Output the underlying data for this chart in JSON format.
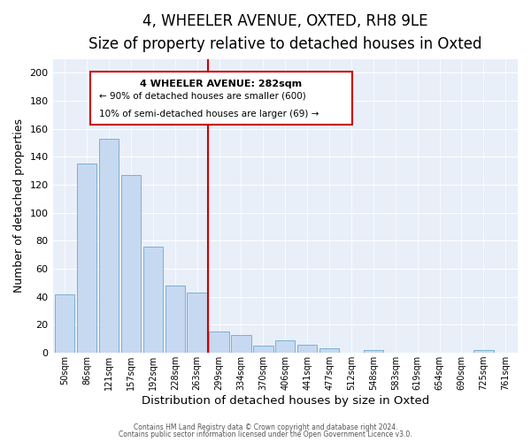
{
  "title1": "4, WHEELER AVENUE, OXTED, RH8 9LE",
  "title2": "Size of property relative to detached houses in Oxted",
  "xlabel": "Distribution of detached houses by size in Oxted",
  "ylabel": "Number of detached properties",
  "bar_labels": [
    "50sqm",
    "86sqm",
    "121sqm",
    "157sqm",
    "192sqm",
    "228sqm",
    "263sqm",
    "299sqm",
    "334sqm",
    "370sqm",
    "406sqm",
    "441sqm",
    "477sqm",
    "512sqm",
    "548sqm",
    "583sqm",
    "619sqm",
    "654sqm",
    "690sqm",
    "725sqm",
    "761sqm"
  ],
  "bar_heights": [
    42,
    135,
    153,
    127,
    76,
    48,
    43,
    15,
    13,
    5,
    9,
    6,
    3,
    0,
    2,
    0,
    0,
    0,
    0,
    2,
    0
  ],
  "bar_color": "#c6d9f1",
  "bar_edge_color": "#7ab0d4",
  "vline_x": 7.0,
  "vline_color": "#cc0000",
  "annotation_title": "4 WHEELER AVENUE: 282sqm",
  "annotation_line1": "← 90% of detached houses are smaller (600)",
  "annotation_line2": "10% of semi-detached houses are larger (69) →",
  "annotation_box_edge": "#cc0000",
  "ylim": [
    0,
    210
  ],
  "yticks": [
    0,
    20,
    40,
    60,
    80,
    100,
    120,
    140,
    160,
    180,
    200
  ],
  "footnote1": "Contains HM Land Registry data © Crown copyright and database right 2024.",
  "footnote2": "Contains public sector information licensed under the Open Government Licence v3.0.",
  "bg_color": "#ffffff",
  "grid_color": "#c8d8e8",
  "title1_fontsize": 12,
  "title2_fontsize": 10,
  "xlabel_fontsize": 9.5,
  "ylabel_fontsize": 9
}
